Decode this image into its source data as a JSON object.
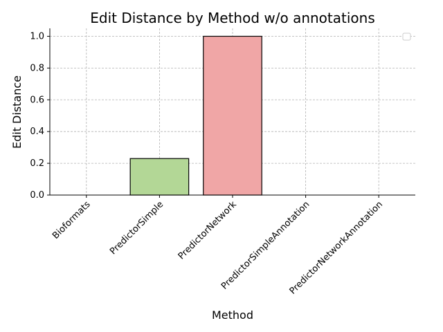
{
  "chart_data": {
    "type": "bar",
    "title": "Edit Distance by Method w/o annotations",
    "xlabel": "Method",
    "ylabel": "Edit Distance",
    "categories": [
      "Bioformats",
      "PredictorSimple",
      "PredictorNetwork",
      "PredictorSimpleAnnotation",
      "PredictorNetworkAnnotation"
    ],
    "values": [
      0.0,
      0.23,
      1.0,
      0.0,
      0.0
    ],
    "colors": [
      "#b3d796",
      "#b3d796",
      "#f0a6a6",
      "#b3d796",
      "#b3d796"
    ],
    "ylim": [
      0,
      1.05
    ],
    "yticks": [
      "0.0",
      "0.2",
      "0.4",
      "0.6",
      "0.8",
      "1.0"
    ],
    "grid": true,
    "legend_placement": "top-right",
    "legend_entries": []
  }
}
